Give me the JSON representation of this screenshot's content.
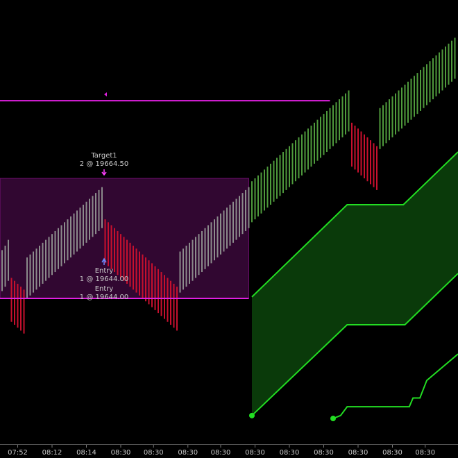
{
  "chart_data": {
    "type": "range-bars",
    "xlim": [
      -0.67,
      146
    ],
    "ylim": [
      19619.12,
      19694.95
    ],
    "xticks": [
      {
        "value": 5,
        "label": "07:52"
      },
      {
        "value": 16,
        "label": "08:12"
      },
      {
        "value": 27,
        "label": "08:14"
      },
      {
        "value": 38,
        "label": "08:30"
      },
      {
        "value": 48.5,
        "label": "08:30"
      },
      {
        "value": 59.5,
        "label": "08:30"
      },
      {
        "value": 70,
        "label": "08:30"
      },
      {
        "value": 81,
        "label": "08:30"
      },
      {
        "value": 92,
        "label": "08:30"
      },
      {
        "value": 103,
        "label": "08:30"
      },
      {
        "value": 114,
        "label": "08:30"
      },
      {
        "value": 125,
        "label": "08:30"
      },
      {
        "value": 135.5,
        "label": "08:30"
      }
    ],
    "bar_groups": [
      {
        "color": "#8c8c8c",
        "range": 7,
        "high": [
          19652.25,
          19653,
          19654
        ]
      },
      {
        "color": "#c8102e",
        "range": 7.5,
        "high": [
          19647.5,
          19647,
          19646.5,
          19646,
          19645.5
        ]
      },
      {
        "color": "#8c8c8c",
        "range": 7,
        "high": [
          19651,
          19651.5,
          19652,
          19652.5,
          19653,
          19653.5,
          19654,
          19654.5,
          19655,
          19655.5,
          19656,
          19656.5,
          19657,
          19657.5,
          19658,
          19658.5,
          19659,
          19659.5,
          19660,
          19660.5,
          19661,
          19661.5,
          19662,
          19662.5,
          19663
        ]
      },
      {
        "color": "#c8102e",
        "range": 7.5,
        "high": [
          19657.5,
          19657,
          19656.5,
          19656,
          19655.5,
          19655,
          19654.5,
          19654,
          19653.5,
          19653,
          19652.5,
          19652,
          19651.5,
          19651,
          19650.5,
          19650,
          19649.5,
          19649,
          19648.5,
          19648,
          19647.5,
          19647,
          19646.5,
          19646
        ]
      },
      {
        "color": "#8c8c8c",
        "range": 7,
        "high": [
          19652,
          19652.5,
          19653,
          19653.5,
          19654,
          19654.5,
          19655,
          19655.5,
          19656,
          19656.5,
          19657,
          19657.5,
          19658,
          19658.5,
          19659,
          19659.5,
          19660,
          19660.5,
          19661,
          19661.5,
          19662,
          19662.5,
          19663
        ]
      },
      {
        "color": "#4f9a3c",
        "range": 7,
        "high": [
          19664,
          19664.5,
          19665,
          19665.5,
          19666,
          19666.5,
          19667,
          19667.5,
          19668,
          19668.5,
          19669,
          19669.5,
          19670,
          19670.5,
          19671,
          19671.5,
          19672,
          19672.5,
          19673,
          19673.5,
          19674,
          19674.5,
          19675,
          19675.5,
          19676,
          19676.5,
          19677,
          19677.5,
          19678,
          19678.5,
          19679,
          19679.5
        ]
      },
      {
        "color": "#c8102e",
        "range": 7.5,
        "high": [
          19674,
          19673.5,
          19673,
          19672.5,
          19672,
          19671.5,
          19671,
          19670.5,
          19670
        ]
      },
      {
        "color": "#4f9a3c",
        "range": 7,
        "high": [
          19676.5,
          19677,
          19677.5,
          19678,
          19678.5,
          19679,
          19679.5,
          19680,
          19680.5,
          19681,
          19681.5,
          19682,
          19682.5,
          19683,
          19683.5,
          19684,
          19684.5,
          19685,
          19685.5,
          19686,
          19686.5,
          19687,
          19687.5,
          19688,
          19688.5
        ]
      }
    ],
    "channel_fill": "#0a3a0a",
    "lines": [
      {
        "color": "#22dd22",
        "x": [
          80,
          110.5,
          128.5,
          146
        ],
        "y": [
          19644.25,
          19660,
          19660,
          19669
        ]
      },
      {
        "color": "#22dd22",
        "x": [
          80,
          110.5,
          129,
          146
        ],
        "y": [
          19624,
          19639.5,
          19639.5,
          19648.25
        ]
      },
      {
        "color": "#22dd22",
        "x": [
          106,
          108.4,
          110.5,
          130.4,
          131.6,
          133.8,
          136,
          146
        ],
        "y": [
          19623.5,
          19624,
          19625.5,
          19625.5,
          19627,
          19627,
          19630,
          19634.5
        ]
      }
    ],
    "dots": {
      "color": "#22dd22",
      "x": [
        80,
        106
      ],
      "y": [
        19624,
        19623.5
      ]
    },
    "box": {
      "color": "#e020e0",
      "x": [
        -0.67,
        79
      ],
      "low": 19644,
      "high": 19664.5
    },
    "levels": [
      {
        "color": "#e020e0",
        "price": 19677.75,
        "x": [
          -0.67,
          105
        ]
      },
      {
        "color": "#e020e0",
        "price": 19644,
        "x": [
          -0.67,
          79
        ]
      }
    ],
    "target": {
      "label": "Target1",
      "detail": "2 @ 19664.50"
    },
    "entries": [
      {
        "label": "Entry",
        "detail": "1 @ 19644.00"
      },
      {
        "label": "Entry",
        "detail": "1 @ 19644.00"
      }
    ]
  }
}
